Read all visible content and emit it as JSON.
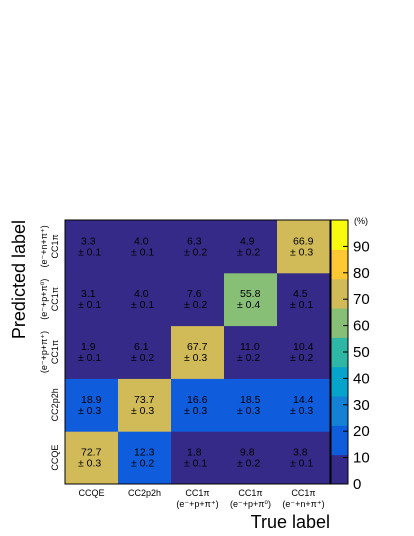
{
  "chart_data": {
    "type": "heatmap",
    "xlabel": "True label",
    "ylabel": "Predicted label",
    "x_categories": [
      {
        "line1": "CCQE",
        "line2": ""
      },
      {
        "line1": "CC2p2h",
        "line2": ""
      },
      {
        "line1": "CC1π",
        "line2": "(e⁻+p+π⁺)"
      },
      {
        "line1": "CC1π",
        "line2": "(e⁻+p+π⁰)"
      },
      {
        "line1": "CC1π",
        "line2": "(e⁻+n+π⁺)"
      }
    ],
    "y_categories": [
      {
        "line1": "CCQE",
        "line2": ""
      },
      {
        "line1": "CC2p2h",
        "line2": ""
      },
      {
        "line1": "CC1π",
        "line2": "(e⁻+p+π⁺)"
      },
      {
        "line1": "CC1π",
        "line2": "(e⁻+p+π⁰)"
      },
      {
        "line1": "CC1π",
        "line2": "(e⁻+n+π⁺)"
      }
    ],
    "values": [
      [
        72.7,
        12.3,
        1.8,
        9.8,
        3.8
      ],
      [
        18.9,
        73.7,
        16.6,
        18.5,
        14.4
      ],
      [
        1.9,
        6.1,
        67.7,
        11.0,
        10.4
      ],
      [
        3.1,
        4.0,
        7.6,
        55.8,
        4.5
      ],
      [
        3.3,
        4.0,
        6.3,
        4.9,
        66.9
      ]
    ],
    "errors": [
      [
        0.3,
        0.2,
        0.1,
        0.2,
        0.1
      ],
      [
        0.3,
        0.3,
        0.3,
        0.3,
        0.3
      ],
      [
        0.1,
        0.2,
        0.3,
        0.2,
        0.2
      ],
      [
        0.1,
        0.1,
        0.2,
        0.4,
        0.1
      ],
      [
        0.1,
        0.1,
        0.2,
        0.2,
        0.3
      ]
    ],
    "value_labels": [
      [
        "72.7",
        "12.3",
        "1.8",
        "9.8",
        "3.8"
      ],
      [
        "18.9",
        "73.7",
        "16.6",
        "18.5",
        "14.4"
      ],
      [
        "1.9",
        "6.1",
        "67.7",
        "11.0",
        "10.4"
      ],
      [
        "3.1",
        "4.0",
        "7.6",
        "55.8",
        "4.5"
      ],
      [
        "3.3",
        "4.0",
        "6.3",
        "4.9",
        "66.9"
      ]
    ],
    "error_labels": [
      [
        "± 0.3",
        "± 0.2",
        "± 0.1",
        "± 0.2",
        "± 0.1"
      ],
      [
        "± 0.3",
        "± 0.3",
        "± 0.3",
        "± 0.3",
        "± 0.3"
      ],
      [
        "± 0.1",
        "± 0.2",
        "± 0.3",
        "± 0.2",
        "± 0.2"
      ],
      [
        "± 0.1",
        "± 0.1",
        "± 0.2",
        "± 0.4",
        "± 0.1"
      ],
      [
        "± 0.1",
        "± 0.1",
        "± 0.2",
        "± 0.2",
        "± 0.3"
      ]
    ],
    "colorbar": {
      "min": 0,
      "max": 100,
      "ticks": [
        "0",
        "10",
        "20",
        "30",
        "40",
        "50",
        "60",
        "70",
        "80",
        "90"
      ],
      "unit_label": "(%)",
      "palette": [
        "#352a87",
        "#0f5cdd",
        "#1481d6",
        "#06a4ca",
        "#2eb7a4",
        "#87bf77",
        "#d1bb59",
        "#fec832",
        "#f9fb0e"
      ]
    }
  }
}
